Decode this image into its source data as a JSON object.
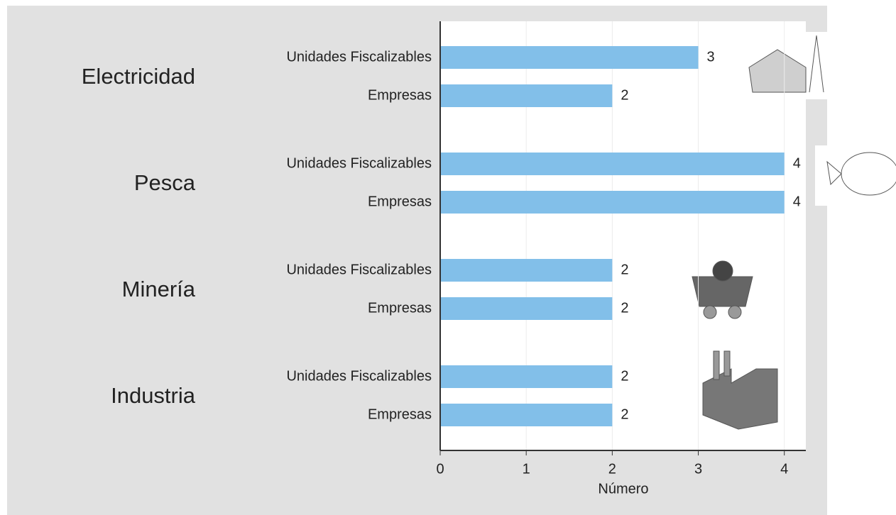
{
  "chart_data": {
    "type": "bar",
    "orientation": "horizontal",
    "groups": [
      {
        "name": "Electricidad",
        "categories": [
          "Unidades Fiscalizables",
          "Empresas"
        ],
        "values": [
          3,
          2
        ]
      },
      {
        "name": "Pesca",
        "categories": [
          "Unidades Fiscalizables",
          "Empresas"
        ],
        "values": [
          4,
          4
        ]
      },
      {
        "name": "Minería",
        "categories": [
          "Unidades Fiscalizables",
          "Empresas"
        ],
        "values": [
          2,
          2
        ]
      },
      {
        "name": "Industria",
        "categories": [
          "Unidades Fiscalizables",
          "Empresas"
        ],
        "values": [
          2,
          2
        ]
      }
    ],
    "color": "#82bfe9",
    "xlabel": "Número",
    "xlim": [
      0,
      4.25
    ],
    "xticks": [
      0,
      1,
      2,
      3,
      4
    ],
    "grid": true
  }
}
